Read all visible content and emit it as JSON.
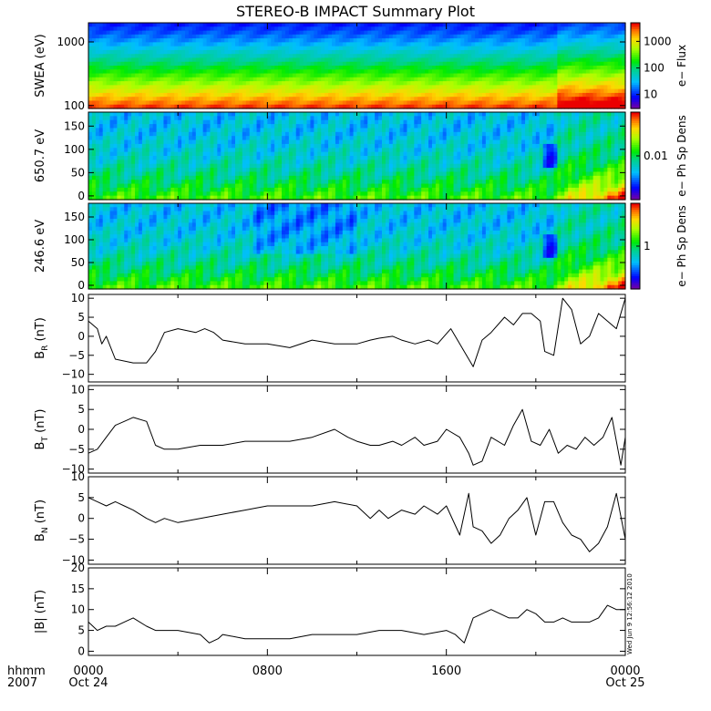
{
  "title": "STEREO-B IMPACT Summary Plot",
  "timestamp": "Wed Jun  9 12:56:12 2010",
  "time_axis": {
    "row1_label": "hhmm",
    "row2_label": "2007",
    "ticks": [
      {
        "hour": 0,
        "label": "0000",
        "date": "Oct 24"
      },
      {
        "hour": 8,
        "label": "0800",
        "date": ""
      },
      {
        "hour": 16,
        "label": "1600",
        "date": ""
      },
      {
        "hour": 24,
        "label": "0000",
        "date": "Oct 25"
      }
    ]
  },
  "chart_data": [
    {
      "type": "heatmap",
      "ylabel": "SWEA (eV)",
      "yscale": "log",
      "ylim": [
        90,
        2000
      ],
      "yticks": [
        {
          "v": 100,
          "label": "100"
        },
        {
          "v": 1000,
          "label": "1000"
        }
      ],
      "colorbar": {
        "label": "e− Flux",
        "scale": "log",
        "range": [
          3,
          5000
        ],
        "ticks": [
          {
            "v": 10,
            "label": "10"
          },
          {
            "v": 100,
            "label": "100"
          },
          {
            "v": 1000,
            "label": "1000"
          }
        ]
      }
    },
    {
      "type": "heatmap",
      "ylabel": "650.7 eV",
      "ylim": [
        -8,
        180
      ],
      "yticks": [
        {
          "v": 0,
          "label": "0"
        },
        {
          "v": 50,
          "label": "50"
        },
        {
          "v": 100,
          "label": "100"
        },
        {
          "v": 150,
          "label": "150"
        }
      ],
      "colorbar": {
        "label": "e− Ph Sp Dens",
        "scale": "log",
        "range": [
          0.001,
          0.1
        ],
        "ticks": [
          {
            "v": 0.01,
            "label": "0.01"
          }
        ]
      }
    },
    {
      "type": "heatmap",
      "ylabel": "246.6 eV",
      "ylim": [
        -8,
        180
      ],
      "yticks": [
        {
          "v": 0,
          "label": "0"
        },
        {
          "v": 50,
          "label": "50"
        },
        {
          "v": 100,
          "label": "100"
        },
        {
          "v": 150,
          "label": "150"
        }
      ],
      "colorbar": {
        "label": "e− Ph Sp Dens",
        "scale": "log",
        "range": [
          0.1,
          10
        ],
        "ticks": [
          {
            "v": 1,
            "label": "1"
          }
        ]
      }
    },
    {
      "type": "line",
      "ylabel_main": "B",
      "ylabel_sub": "R",
      "ylabel_unit": " (nT)",
      "ylim": [
        -12,
        11
      ],
      "yticks": [
        {
          "v": -10,
          "label": "−10"
        },
        {
          "v": -5,
          "label": "−5"
        },
        {
          "v": 0,
          "label": "0"
        },
        {
          "v": 5,
          "label": "5"
        },
        {
          "v": 10,
          "label": "10"
        }
      ],
      "series": [
        {
          "x": [
            0,
            0.4,
            0.6,
            0.8,
            1.2,
            2,
            2.6,
            3,
            3.4,
            4,
            4.8,
            5.2,
            5.6,
            6,
            7,
            8,
            9,
            10,
            11,
            12,
            12.6,
            13,
            13.6,
            14,
            14.6,
            15.2,
            15.6,
            16.2,
            16.8,
            17.2,
            17.6,
            18,
            18.6,
            19,
            19.4,
            19.8,
            20.2,
            20.4,
            20.8,
            21.2,
            21.6,
            22,
            22.4,
            22.8,
            23.2,
            23.6,
            24
          ],
          "y": [
            4,
            2,
            -2,
            0,
            -6,
            -7,
            -7,
            -4,
            1,
            2,
            1,
            2,
            1,
            -1,
            -2,
            -2,
            -3,
            -1,
            -2,
            -2,
            -1,
            -0.5,
            0,
            -1,
            -2,
            -1,
            -2,
            2,
            -4,
            -8,
            -1,
            1,
            5,
            3,
            6,
            6,
            4,
            -4,
            -5,
            10,
            7,
            -2,
            0,
            6,
            4,
            2,
            10
          ]
        }
      ]
    },
    {
      "type": "line",
      "ylabel_main": "B",
      "ylabel_sub": "T",
      "ylabel_unit": " (nT)",
      "ylim": [
        -11,
        11
      ],
      "yticks": [
        {
          "v": -10,
          "label": "−10"
        },
        {
          "v": -5,
          "label": "−5"
        },
        {
          "v": 0,
          "label": "0"
        },
        {
          "v": 5,
          "label": "5"
        },
        {
          "v": 10,
          "label": "10"
        }
      ],
      "series": [
        {
          "x": [
            0,
            0.4,
            0.8,
            1.2,
            1.6,
            2,
            2.6,
            3,
            3.4,
            4,
            5,
            6,
            7,
            8,
            9,
            10,
            11,
            11.6,
            12,
            12.6,
            13,
            13.6,
            14,
            14.6,
            15,
            15.6,
            16,
            16.6,
            17,
            17.2,
            17.6,
            18,
            18.6,
            19,
            19.4,
            19.8,
            20.2,
            20.6,
            21,
            21.4,
            21.8,
            22.2,
            22.6,
            23,
            23.4,
            23.8,
            24
          ],
          "y": [
            -6,
            -5,
            -2,
            1,
            2,
            3,
            2,
            -4,
            -5,
            -5,
            -4,
            -4,
            -3,
            -3,
            -3,
            -2,
            0,
            -2,
            -3,
            -4,
            -4,
            -3,
            -4,
            -2,
            -4,
            -3,
            0,
            -2,
            -6,
            -9,
            -8,
            -2,
            -4,
            1,
            5,
            -3,
            -4,
            0,
            -6,
            -4,
            -5,
            -2,
            -4,
            -2,
            3,
            -9,
            -2
          ]
        }
      ]
    },
    {
      "type": "line",
      "ylabel_main": "B",
      "ylabel_sub": "N",
      "ylabel_unit": " (nT)",
      "ylim": [
        -11,
        10
      ],
      "yticks": [
        {
          "v": -10,
          "label": "−10"
        },
        {
          "v": -5,
          "label": "−5"
        },
        {
          "v": 0,
          "label": "0"
        },
        {
          "v": 5,
          "label": "5"
        },
        {
          "v": 10,
          "label": "10"
        }
      ],
      "series": [
        {
          "x": [
            0,
            0.4,
            0.8,
            1.2,
            1.6,
            2,
            2.6,
            3,
            3.4,
            4,
            5,
            6,
            7,
            8,
            9,
            10,
            11,
            12,
            12.6,
            13,
            13.4,
            14,
            14.6,
            15,
            15.6,
            16,
            16.6,
            17,
            17.2,
            17.6,
            18,
            18.4,
            18.8,
            19.2,
            19.6,
            20,
            20.4,
            20.8,
            21.2,
            21.6,
            22,
            22.4,
            22.8,
            23.2,
            23.6,
            24
          ],
          "y": [
            5,
            4,
            3,
            4,
            3,
            2,
            0,
            -1,
            0,
            -1,
            0,
            1,
            2,
            3,
            3,
            3,
            4,
            3,
            0,
            2,
            0,
            2,
            1,
            3,
            1,
            3,
            -4,
            6,
            -2,
            -3,
            -6,
            -4,
            0,
            2,
            5,
            -4,
            4,
            4,
            -1,
            -4,
            -5,
            -8,
            -6,
            -2,
            6,
            -5
          ]
        }
      ]
    },
    {
      "type": "line",
      "ylabel": "|B| (nT)",
      "ylim": [
        -1,
        20
      ],
      "yticks": [
        {
          "v": 0,
          "label": "0"
        },
        {
          "v": 5,
          "label": "5"
        },
        {
          "v": 10,
          "label": "10"
        },
        {
          "v": 15,
          "label": "15"
        },
        {
          "v": 20,
          "label": "20"
        }
      ],
      "series": [
        {
          "x": [
            0,
            0.4,
            0.8,
            1.2,
            1.6,
            2,
            2.6,
            3,
            3.4,
            4,
            5,
            5.4,
            5.8,
            6,
            7,
            8,
            9,
            10,
            11,
            12,
            13,
            14,
            15,
            16,
            16.4,
            16.8,
            17.2,
            17.6,
            18,
            18.4,
            18.8,
            19.2,
            19.6,
            20,
            20.4,
            20.8,
            21.2,
            21.6,
            22,
            22.4,
            22.8,
            23.2,
            23.6,
            24
          ],
          "y": [
            7,
            5,
            6,
            6,
            7,
            8,
            6,
            5,
            5,
            5,
            4,
            2,
            3,
            4,
            3,
            3,
            3,
            4,
            4,
            4,
            5,
            5,
            4,
            5,
            4,
            2,
            8,
            9,
            10,
            9,
            8,
            8,
            10,
            9,
            7,
            7,
            8,
            7,
            7,
            7,
            8,
            11,
            10,
            10
          ]
        }
      ]
    }
  ]
}
